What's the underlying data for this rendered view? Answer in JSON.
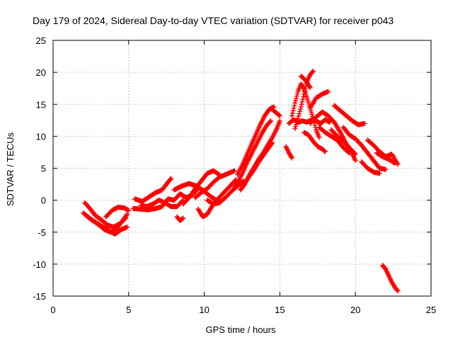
{
  "chart_data": {
    "type": "scatter",
    "title": "Day 179 of 2024, Sidereal Day-to-day VTEC variation (SDTVAR) for receiver p043",
    "xlabel": "GPS time / hours",
    "ylabel": "SDTVAR / TECUs",
    "xlim": [
      0,
      25
    ],
    "ylim": [
      -15,
      25
    ],
    "xticks": [
      0,
      5,
      10,
      15,
      20,
      25
    ],
    "yticks": [
      -15,
      -10,
      -5,
      0,
      5,
      10,
      15,
      20,
      25
    ],
    "grid": true,
    "marker": "+",
    "color": "#ff0000",
    "segments": [
      [
        [
          2.0,
          -2.0
        ],
        [
          2.3,
          -2.6
        ],
        [
          2.7,
          -3.3
        ],
        [
          3.0,
          -3.8
        ],
        [
          3.4,
          -4.6
        ],
        [
          3.8,
          -5.0
        ],
        [
          4.2,
          -4.4
        ],
        [
          4.6,
          -3.2
        ],
        [
          4.9,
          -2.2
        ]
      ],
      [
        [
          2.1,
          -0.4
        ],
        [
          2.4,
          -1.2
        ],
        [
          2.8,
          -2.4
        ],
        [
          3.2,
          -3.1
        ],
        [
          3.6,
          -3.9
        ],
        [
          4.0,
          -4.2
        ],
        [
          4.4,
          -3.7
        ],
        [
          4.8,
          -2.8
        ]
      ],
      [
        [
          2.2,
          -2.4
        ],
        [
          2.5,
          -3.0
        ],
        [
          2.9,
          -3.6
        ],
        [
          3.3,
          -4.2
        ],
        [
          3.7,
          -4.8
        ],
        [
          4.1,
          -5.3
        ],
        [
          4.5,
          -4.6
        ],
        [
          4.9,
          -4.2
        ]
      ],
      [
        [
          3.5,
          -2.6
        ],
        [
          3.9,
          -1.6
        ],
        [
          4.3,
          -1.1
        ],
        [
          4.7,
          -1.2
        ],
        [
          5.0,
          -1.6
        ]
      ],
      [
        [
          5.3,
          -1.3
        ],
        [
          5.8,
          -1.4
        ],
        [
          6.3,
          -1.5
        ],
        [
          6.8,
          -1.3
        ],
        [
          7.2,
          -1.0
        ],
        [
          7.6,
          0.2
        ],
        [
          8.0,
          0.0
        ],
        [
          8.4,
          1.0
        ],
        [
          8.8,
          0.4
        ],
        [
          9.2,
          0.8
        ],
        [
          9.6,
          1.8
        ]
      ],
      [
        [
          5.4,
          0.2
        ],
        [
          5.9,
          -0.2
        ],
        [
          6.4,
          0.6
        ],
        [
          6.8,
          1.2
        ],
        [
          7.2,
          1.6
        ],
        [
          7.6,
          2.8
        ],
        [
          7.8,
          3.4
        ]
      ],
      [
        [
          5.8,
          -0.8
        ],
        [
          6.2,
          -1.0
        ],
        [
          6.6,
          -0.6
        ],
        [
          7.0,
          0.0
        ],
        [
          7.4,
          -0.4
        ],
        [
          7.8,
          -1.0
        ],
        [
          8.2,
          -1.0
        ],
        [
          8.6,
          0.0
        ]
      ],
      [
        [
          8.2,
          -2.6
        ],
        [
          8.4,
          -3.2
        ],
        [
          8.6,
          -2.8
        ]
      ],
      [
        [
          8.0,
          1.6
        ],
        [
          8.5,
          2.2
        ],
        [
          9.0,
          2.6
        ],
        [
          9.5,
          2.2
        ],
        [
          10.0,
          1.4
        ],
        [
          10.4,
          0.6
        ],
        [
          10.8,
          0.0
        ]
      ],
      [
        [
          8.6,
          -0.6
        ],
        [
          9.0,
          0.4
        ],
        [
          9.4,
          1.8
        ],
        [
          9.8,
          3.0
        ],
        [
          10.2,
          4.2
        ],
        [
          10.6,
          4.6
        ],
        [
          11.0,
          4.0
        ]
      ],
      [
        [
          9.4,
          0.4
        ],
        [
          9.8,
          1.2
        ],
        [
          10.2,
          1.8
        ],
        [
          10.6,
          2.8
        ],
        [
          11.0,
          3.6
        ],
        [
          11.4,
          4.0
        ],
        [
          11.8,
          4.4
        ],
        [
          12.0,
          4.6
        ]
      ],
      [
        [
          9.6,
          -1.4
        ],
        [
          9.9,
          -2.6
        ],
        [
          10.2,
          -2.2
        ],
        [
          10.5,
          -1.0
        ],
        [
          10.9,
          0.2
        ],
        [
          11.3,
          1.2
        ],
        [
          11.7,
          2.2
        ],
        [
          12.1,
          3.2
        ]
      ],
      [
        [
          10.2,
          0.0
        ],
        [
          10.6,
          -0.6
        ],
        [
          11.0,
          -0.4
        ],
        [
          11.4,
          0.4
        ],
        [
          11.8,
          1.4
        ],
        [
          12.2,
          2.2
        ],
        [
          12.6,
          3.0
        ]
      ],
      [
        [
          12.0,
          2.0
        ],
        [
          12.3,
          3.2
        ],
        [
          12.6,
          4.6
        ],
        [
          12.9,
          6.2
        ],
        [
          13.2,
          7.6
        ],
        [
          13.5,
          9.0
        ],
        [
          13.8,
          10.4
        ],
        [
          14.1,
          11.6
        ],
        [
          14.4,
          12.4
        ]
      ],
      [
        [
          12.2,
          4.0
        ],
        [
          12.5,
          5.4
        ],
        [
          12.8,
          7.0
        ],
        [
          13.1,
          8.6
        ],
        [
          13.4,
          10.2
        ],
        [
          13.7,
          11.8
        ],
        [
          14.0,
          13.2
        ],
        [
          14.3,
          14.2
        ],
        [
          14.6,
          14.6
        ]
      ],
      [
        [
          12.4,
          1.6
        ],
        [
          12.7,
          2.6
        ],
        [
          13.0,
          4.0
        ],
        [
          13.3,
          5.2
        ],
        [
          13.6,
          6.4
        ],
        [
          13.9,
          7.4
        ],
        [
          14.2,
          8.6
        ],
        [
          14.5,
          9.8
        ],
        [
          14.8,
          11.2
        ],
        [
          15.0,
          12.4
        ]
      ],
      [
        [
          12.7,
          2.8
        ],
        [
          13.0,
          3.8
        ],
        [
          13.3,
          4.8
        ],
        [
          13.6,
          6.0
        ],
        [
          13.9,
          7.0
        ],
        [
          14.2,
          8.0
        ],
        [
          14.5,
          9.0
        ]
      ],
      [
        [
          14.4,
          14.4
        ],
        [
          14.7,
          13.8
        ],
        [
          15.0,
          13.2
        ]
      ],
      [
        [
          15.4,
          8.4
        ],
        [
          15.6,
          7.4
        ],
        [
          15.8,
          6.6
        ]
      ],
      [
        [
          15.6,
          12.0
        ],
        [
          15.9,
          12.6
        ],
        [
          16.2,
          12.2
        ],
        [
          16.5,
          12.4
        ],
        [
          16.8,
          12.2
        ],
        [
          17.1,
          12.6
        ],
        [
          17.4,
          12.4
        ],
        [
          17.7,
          12.0
        ],
        [
          18.0,
          12.6
        ],
        [
          18.3,
          12.2
        ]
      ],
      [
        [
          15.8,
          13.2
        ],
        [
          16.0,
          15.2
        ],
        [
          16.2,
          17.0
        ],
        [
          16.4,
          18.2
        ],
        [
          16.6,
          17.4
        ],
        [
          16.8,
          16.0
        ],
        [
          17.0,
          14.4
        ],
        [
          17.2,
          12.8
        ],
        [
          17.4,
          11.0
        ],
        [
          17.6,
          9.8
        ]
      ],
      [
        [
          16.0,
          11.2
        ],
        [
          16.2,
          12.8
        ],
        [
          16.4,
          14.6
        ],
        [
          16.6,
          16.6
        ],
        [
          16.8,
          18.6
        ],
        [
          17.0,
          19.6
        ],
        [
          17.2,
          20.2
        ]
      ],
      [
        [
          16.4,
          19.4
        ],
        [
          16.6,
          19.0
        ],
        [
          16.8,
          18.4
        ],
        [
          17.0,
          17.6
        ]
      ],
      [
        [
          16.6,
          10.6
        ],
        [
          16.9,
          10.2
        ],
        [
          17.2,
          9.2
        ],
        [
          17.5,
          8.4
        ],
        [
          17.8,
          8.0
        ],
        [
          18.0,
          7.6
        ]
      ],
      [
        [
          17.0,
          14.4
        ],
        [
          17.4,
          16.0
        ],
        [
          17.8,
          16.6
        ],
        [
          18.2,
          17.0
        ]
      ],
      [
        [
          17.0,
          12.0
        ],
        [
          17.4,
          13.0
        ],
        [
          17.8,
          13.8
        ],
        [
          18.2,
          13.2
        ],
        [
          18.6,
          12.2
        ],
        [
          19.0,
          10.6
        ],
        [
          19.4,
          8.8
        ],
        [
          19.8,
          7.2
        ],
        [
          20.0,
          6.2
        ]
      ],
      [
        [
          17.6,
          11.4
        ],
        [
          18.0,
          10.6
        ],
        [
          18.4,
          10.0
        ],
        [
          18.8,
          9.4
        ],
        [
          19.2,
          8.2
        ],
        [
          19.6,
          7.4
        ]
      ],
      [
        [
          18.4,
          11.0
        ],
        [
          18.8,
          10.0
        ],
        [
          19.2,
          9.2
        ],
        [
          19.6,
          8.2
        ],
        [
          20.0,
          7.2
        ]
      ],
      [
        [
          18.6,
          14.8
        ],
        [
          19.0,
          14.0
        ],
        [
          19.4,
          13.2
        ],
        [
          19.8,
          12.4
        ],
        [
          20.2,
          11.8
        ],
        [
          20.6,
          12.0
        ]
      ],
      [
        [
          19.2,
          11.4
        ],
        [
          19.6,
          10.2
        ],
        [
          20.0,
          9.6
        ],
        [
          20.4,
          8.6
        ],
        [
          20.8,
          7.4
        ],
        [
          21.2,
          6.2
        ],
        [
          21.6,
          5.0
        ],
        [
          22.0,
          4.8
        ]
      ],
      [
        [
          20.4,
          6.0
        ],
        [
          20.8,
          5.0
        ],
        [
          21.2,
          4.4
        ],
        [
          21.6,
          4.2
        ]
      ],
      [
        [
          20.8,
          9.4
        ],
        [
          21.2,
          8.6
        ],
        [
          21.6,
          7.6
        ],
        [
          22.0,
          6.8
        ],
        [
          22.4,
          7.2
        ],
        [
          22.8,
          5.6
        ]
      ],
      [
        [
          21.4,
          7.4
        ],
        [
          21.8,
          6.8
        ],
        [
          22.2,
          6.4
        ],
        [
          22.6,
          5.8
        ]
      ],
      [
        [
          21.8,
          -10.2
        ],
        [
          22.0,
          -10.8
        ],
        [
          22.2,
          -11.8
        ],
        [
          22.4,
          -12.8
        ],
        [
          22.6,
          -13.6
        ],
        [
          22.8,
          -14.2
        ]
      ]
    ]
  }
}
